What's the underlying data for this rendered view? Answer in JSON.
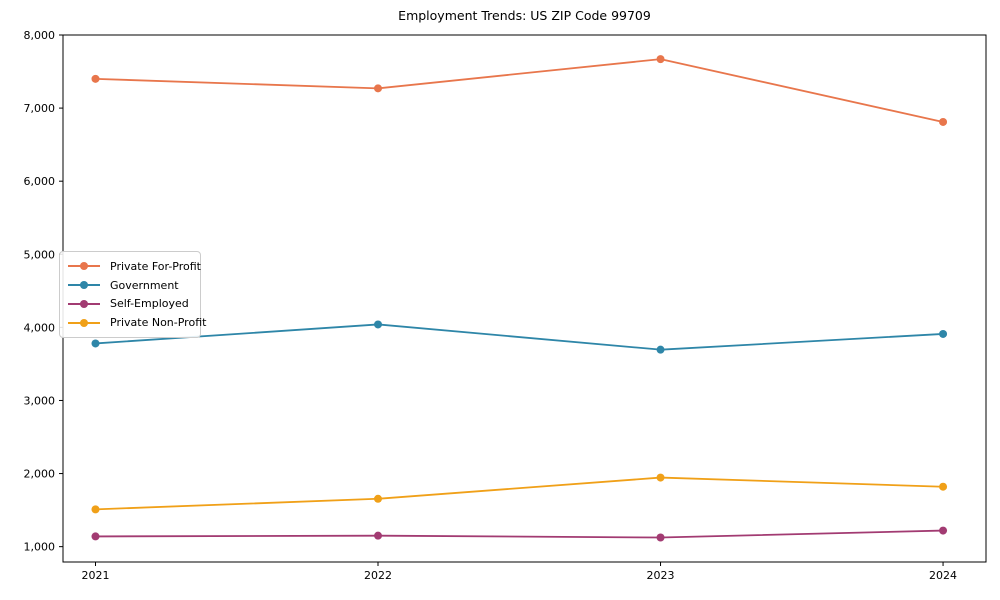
{
  "chart_data": {
    "type": "line",
    "title": "Employment Trends: US ZIP Code 99709",
    "x": [
      2021,
      2022,
      2023,
      2024
    ],
    "xtick_labels": [
      "2021",
      "2022",
      "2023",
      "2024"
    ],
    "ytick_values": [
      1000,
      2000,
      3000,
      4000,
      5000,
      6000,
      7000,
      8000
    ],
    "ytick_labels": [
      "1,000",
      "2,000",
      "3,000",
      "4,000",
      "5,000",
      "6,000",
      "7,000",
      "8,000"
    ],
    "xlim": [
      2020.885,
      2024.152
    ],
    "ylim": [
      790,
      8000
    ],
    "xlabel": "",
    "ylabel": "",
    "grid": false,
    "legend_position": "center-left",
    "marker": "circle",
    "series": [
      {
        "name": "Private For-Profit",
        "color": "#E8764C",
        "values": [
          7400,
          7270,
          7670,
          6810
        ]
      },
      {
        "name": "Government",
        "color": "#2E86A8",
        "values": [
          3780,
          4040,
          3695,
          3910
        ]
      },
      {
        "name": "Self-Employed",
        "color": "#A23B72",
        "values": [
          1140,
          1150,
          1125,
          1220
        ]
      },
      {
        "name": "Private Non-Profit",
        "color": "#F0A018",
        "values": [
          1510,
          1655,
          1945,
          1820
        ]
      }
    ]
  }
}
